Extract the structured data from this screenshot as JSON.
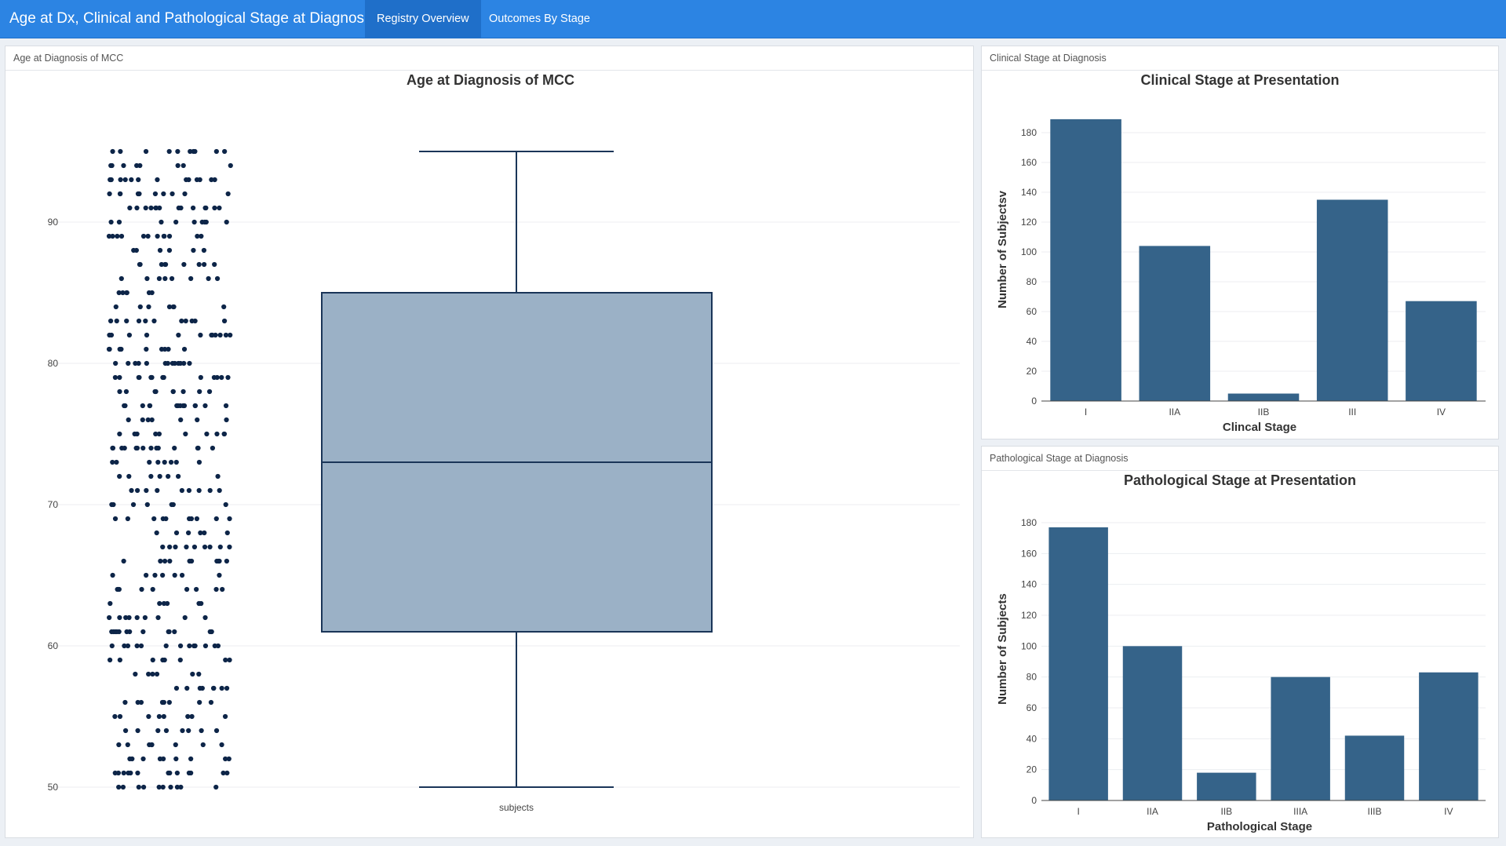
{
  "app": {
    "title": "Age at Dx, Clinical and Pathological Stage at Diagnosis",
    "tabs": [
      {
        "label": "Registry Overview",
        "active": true
      },
      {
        "label": "Outcomes By Stage",
        "active": false
      }
    ]
  },
  "colors": {
    "navbar": "#2c84e3",
    "bar": "#356389",
    "box_fill": "#9bb1c6",
    "box_line": "#1a3558",
    "points": "#0d2548"
  },
  "panels": {
    "age": {
      "heading": "Age at Diagnosis of MCC"
    },
    "clinical": {
      "heading": "Clinical Stage at Diagnosis"
    },
    "pathological": {
      "heading": "Pathological Stage at Diagnosis"
    }
  },
  "chart_data": [
    {
      "type": "box",
      "title": "Age at Diagnosis of MCC",
      "categories": [
        "subjects"
      ],
      "ylim": [
        47.5,
        97.5
      ],
      "y_ticks": [
        50,
        60,
        70,
        80,
        90
      ],
      "box": {
        "min": 50,
        "q1": 61,
        "median": 73,
        "q3": 85,
        "max": 95
      },
      "points_visible": true,
      "grid": true
    },
    {
      "type": "bar",
      "title": "Clinical Stage at Presentation",
      "xlabel": "Clincal Stage",
      "ylabel": "Number of Subjectsv",
      "categories": [
        "I",
        "IIA",
        "IIB",
        "III",
        "IV"
      ],
      "values": [
        189,
        104,
        5,
        135,
        67
      ],
      "ylim": [
        0,
        190
      ],
      "y_ticks": [
        0,
        20,
        40,
        60,
        80,
        100,
        120,
        140,
        160,
        180
      ],
      "grid": true
    },
    {
      "type": "bar",
      "title": "Pathological Stage at Presentation",
      "xlabel": "Pathological Stage",
      "ylabel": "Number of Subjects",
      "categories": [
        "I",
        "IIA",
        "IIB",
        "IIIA",
        "IIIB",
        "IV"
      ],
      "values": [
        177,
        100,
        18,
        80,
        42,
        83
      ],
      "ylim": [
        0,
        180
      ],
      "y_ticks": [
        0,
        20,
        40,
        60,
        80,
        100,
        120,
        140,
        160,
        180
      ],
      "grid": true
    }
  ]
}
